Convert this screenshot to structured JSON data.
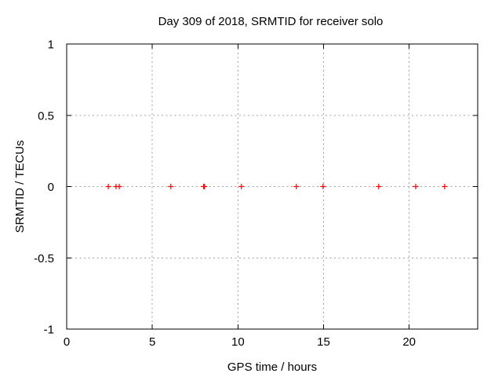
{
  "chart_data": {
    "type": "scatter",
    "title": "Day 309 of 2018, SRMTID for receiver solo",
    "xlabel": "GPS time / hours",
    "ylabel": "SRMTID / TECUs",
    "xlim": [
      0,
      24
    ],
    "ylim": [
      -1,
      1
    ],
    "xticks": [
      0,
      5,
      10,
      15,
      20
    ],
    "xtick_labels": [
      "0",
      "5",
      "10",
      "15",
      "20"
    ],
    "yticks": [
      -1,
      -0.5,
      0,
      0.5,
      1
    ],
    "ytick_labels": [
      "-1",
      "-0.5",
      "0",
      "0.5",
      "1"
    ],
    "grid": true,
    "grid_style": "dashed",
    "legend_position": "none",
    "colors": {
      "marker": "#ff0000",
      "grid": "#a0a0a0",
      "border": "#000000",
      "text": "#000000",
      "background": "#ffffff"
    },
    "series": [
      {
        "marker": "plus",
        "color": "#ff0000",
        "x": [
          2.43,
          2.88,
          3.07,
          6.08,
          8.0,
          8.05,
          10.2,
          13.41,
          14.97,
          18.22,
          20.38,
          22.07
        ],
        "y": [
          0,
          0,
          0,
          0,
          0,
          0,
          0,
          0,
          0,
          0,
          0,
          0
        ]
      }
    ]
  }
}
